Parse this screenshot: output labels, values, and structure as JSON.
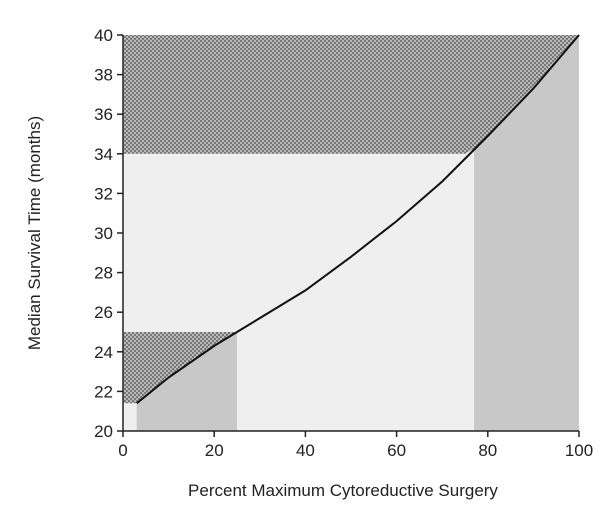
{
  "chart_data": {
    "type": "line",
    "title": "",
    "xlabel": "Percent Maximum Cytoreductive Surgery",
    "ylabel": "Median Survival Time (months)",
    "xlim": [
      0,
      100
    ],
    "ylim": [
      20,
      40
    ],
    "x_ticks": [
      0,
      20,
      40,
      60,
      80,
      100
    ],
    "y_ticks": [
      20,
      22,
      24,
      26,
      28,
      30,
      32,
      34,
      36,
      38,
      40
    ],
    "x_tick_labels": [
      "0",
      "20",
      "40",
      "60",
      "80",
      "100"
    ],
    "y_tick_labels": [
      "20",
      "22",
      "24",
      "26",
      "28",
      "30",
      "32",
      "34",
      "36",
      "38",
      "40"
    ],
    "grid": false,
    "legend": "none",
    "series": [
      {
        "x": [
          3,
          10,
          20,
          30,
          40,
          50,
          60,
          70,
          80,
          90,
          100
        ],
        "y": [
          21.4,
          22.7,
          24.3,
          25.7,
          27.1,
          28.8,
          30.6,
          32.6,
          34.9,
          37.3,
          40.0
        ]
      }
    ],
    "shaded_regions": [
      {
        "kind": "hatched",
        "x": [
          0,
          100
        ],
        "y": [
          34,
          40
        ]
      },
      {
        "kind": "hatched",
        "x": [
          0,
          25
        ],
        "y": [
          21.4,
          25
        ]
      },
      {
        "kind": "gray",
        "x": [
          3,
          25
        ]
      },
      {
        "kind": "gray",
        "x": [
          77,
          100
        ]
      }
    ],
    "colors": {
      "background": "#efefef",
      "gray_band": "#c8c8c8",
      "hatch_fill": "#b8b8b8",
      "hatch_dot": "#4a4a4a",
      "line": "#111111",
      "axis": "#222222"
    }
  }
}
